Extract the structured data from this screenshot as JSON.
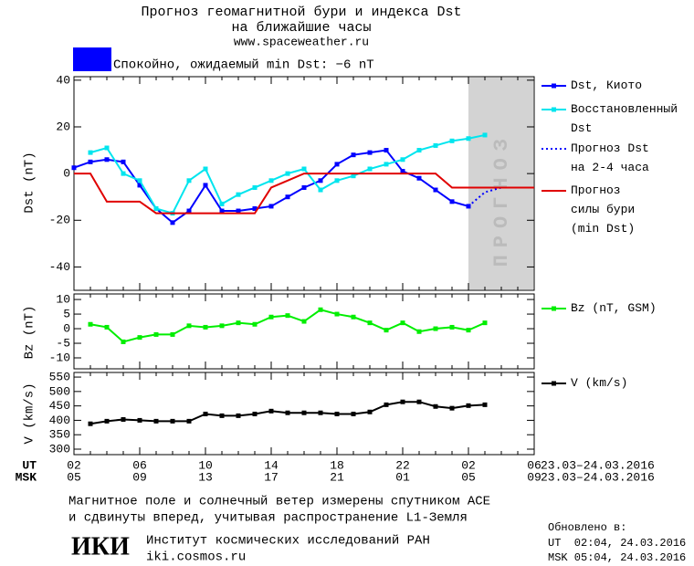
{
  "header": {
    "title_lines": [
      "Прогноз геомагнитной бури и индекса Dst",
      "на ближайшие часы"
    ],
    "url": "www.spaceweather.ru"
  },
  "status": {
    "color": "#0000ff",
    "text": "Спокойно, ожидаемый min Dst: −6 nT"
  },
  "chart_data": [
    {
      "type": "line",
      "ylabel": "Dst (nT)",
      "ylim": [
        -50,
        41.5
      ],
      "yticks": [
        40,
        20,
        0,
        -20,
        -40
      ],
      "shade_label": "ПРОГНОЗ",
      "series": [
        {
          "name": "Dst, Киото",
          "color": "#0000ff",
          "marker": true,
          "dash": false,
          "values": [
            2.5,
            5,
            6,
            5,
            -5,
            -15,
            -21,
            -16,
            -5,
            -16,
            -16,
            -15,
            -14,
            -10,
            -6,
            -3,
            4,
            8,
            9,
            10,
            1,
            -2,
            -7,
            -12,
            -14,
            null,
            null,
            null,
            null
          ]
        },
        {
          "name": "Восстановленный\nDst",
          "color": "#00e5ee",
          "marker": true,
          "dash": false,
          "values": [
            null,
            9,
            11,
            0,
            -3,
            -15,
            -17,
            -3,
            2,
            -13,
            -9,
            -6,
            -3,
            0,
            2,
            -7,
            -3,
            -1,
            2,
            4,
            6,
            10,
            12,
            14,
            15,
            16.5,
            null,
            null,
            null
          ]
        },
        {
          "name": "Прогноз Dst\nна 2-4 часа",
          "color": "#0000ff",
          "marker": false,
          "dash": true,
          "values": [
            null,
            null,
            null,
            null,
            null,
            null,
            null,
            null,
            null,
            null,
            null,
            null,
            null,
            null,
            null,
            null,
            null,
            null,
            null,
            null,
            null,
            null,
            null,
            null,
            -14,
            -8,
            -6,
            -6,
            -6
          ]
        },
        {
          "name": "Прогноз\nсилы бури\n(min Dst)",
          "color": "#e00000",
          "marker": false,
          "dash": false,
          "values": [
            0,
            0,
            -12,
            -12,
            -12,
            -17,
            -17,
            -17,
            -17,
            -17,
            -17,
            -17,
            -6,
            -3,
            0,
            0,
            0,
            0,
            0,
            0,
            0,
            0,
            0,
            -6,
            -6,
            -6,
            -6,
            -6,
            -6
          ]
        }
      ]
    },
    {
      "type": "line",
      "ylabel": "Bz (nT)",
      "ylim": [
        -13.75,
        11.9
      ],
      "yticks": [
        10,
        5,
        0,
        -5,
        -10
      ],
      "series": [
        {
          "name": "Bz (nT, GSM)",
          "color": "#00ee00",
          "marker": true,
          "dash": false,
          "values": [
            null,
            1.5,
            0.5,
            -4.5,
            -3,
            -2,
            -2,
            1,
            0.5,
            1,
            2,
            1.5,
            4,
            4.5,
            2.5,
            6.5,
            5,
            4,
            2,
            -0.5,
            2,
            -1,
            0,
            0.5,
            -0.5,
            2,
            null,
            null,
            null
          ]
        }
      ]
    },
    {
      "type": "line",
      "ylabel": "V (km/s)",
      "ylim": [
        281,
        566
      ],
      "yticks": [
        550,
        500,
        450,
        400,
        350,
        300
      ],
      "series": [
        {
          "name": "V (km/s)",
          "color": "#000000",
          "marker": true,
          "dash": false,
          "values": [
            null,
            388,
            397,
            403,
            400,
            397,
            397,
            397,
            422,
            416,
            416,
            422,
            432,
            426,
            426,
            426,
            422,
            422,
            429,
            454,
            464,
            464,
            448,
            442,
            451,
            454,
            null,
            null,
            null
          ]
        }
      ],
      "row_labels": [
        "UT",
        "MSK"
      ],
      "categories": [
        "02",
        null,
        null,
        null,
        "06",
        null,
        null,
        null,
        "10",
        null,
        null,
        null,
        "14",
        null,
        null,
        null,
        "18",
        null,
        null,
        null,
        "22",
        null,
        null,
        null,
        "02",
        null,
        null,
        null,
        "06"
      ],
      "categories_msk": [
        "05",
        null,
        null,
        null,
        "09",
        null,
        null,
        null,
        "13",
        null,
        null,
        null,
        "17",
        null,
        null,
        null,
        "21",
        null,
        null,
        null,
        "01",
        null,
        null,
        null,
        "05",
        null,
        null,
        null,
        "09"
      ],
      "date_ranges": [
        "23.03–24.03.2016",
        "23.03–24.03.2016"
      ]
    }
  ],
  "footer": {
    "note_lines": [
      "Магнитное поле и солнечный ветер измерены спутником ACE",
      "и сдвинуты вперед, учитывая распространение L1-Земля"
    ],
    "logo": "ИКИ",
    "institute": "Институт космических исследований РАН",
    "site": "iki.cosmos.ru",
    "updated": [
      "Обновлено в:",
      "UT  02:04, 24.03.2016",
      "MSK 05:04, 24.03.2016"
    ]
  }
}
